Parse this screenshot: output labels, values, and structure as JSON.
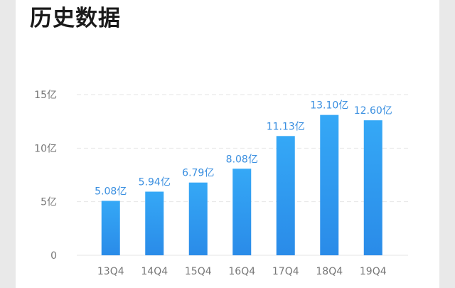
{
  "page": {
    "title": "历史数据"
  },
  "colors": {
    "bar_top": "#35a8f6",
    "bar_bottom": "#2a8be8",
    "data_label": "#3a8fe0",
    "grid": "#e6e6e6",
    "tick": "#777777"
  },
  "chart_data": {
    "type": "bar",
    "categories": [
      "13Q4",
      "14Q4",
      "15Q4",
      "16Q4",
      "17Q4",
      "18Q4",
      "19Q4"
    ],
    "values": [
      5.08,
      5.94,
      6.79,
      8.08,
      11.13,
      13.1,
      12.6
    ],
    "data_labels": [
      "5.08亿",
      "5.94亿",
      "6.79亿",
      "8.08亿",
      "11.13亿",
      "13.10亿",
      "12.60亿"
    ],
    "yticks": [
      0,
      5,
      10,
      15
    ],
    "ytick_labels": [
      "0",
      "5亿",
      "10亿",
      "15亿"
    ],
    "ylim": [
      0,
      15
    ],
    "grid": true,
    "legend": "none"
  }
}
